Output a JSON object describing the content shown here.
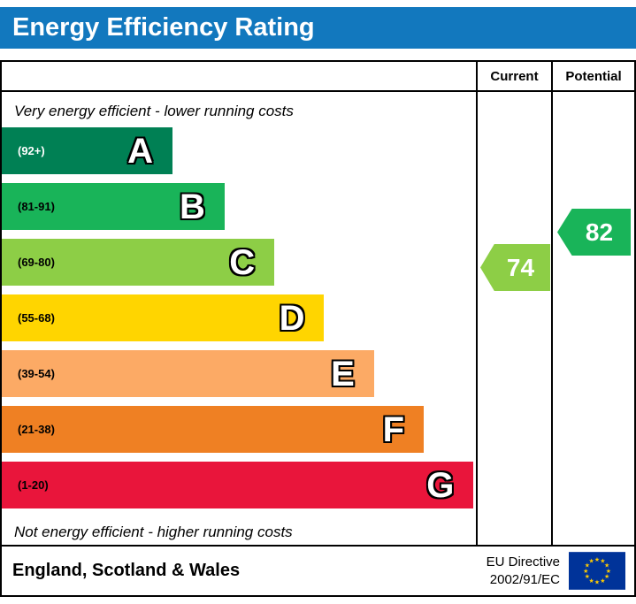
{
  "title": "Energy Efficiency Rating",
  "columns": {
    "current": "Current",
    "potential": "Potential"
  },
  "top_note": "Very energy efficient - lower running costs",
  "bottom_note": "Not energy efficient - higher running costs",
  "colors": {
    "header": "#1278be",
    "eu_flag_blue": "#003399",
    "eu_star_yellow": "#ffcc00"
  },
  "bands": [
    {
      "letter": "A",
      "range": "(92+)",
      "color": "#008054",
      "width": 36,
      "range_color": "#ffffff"
    },
    {
      "letter": "B",
      "range": "(81-91)",
      "color": "#19b459",
      "width": 47,
      "range_color": "#000000"
    },
    {
      "letter": "C",
      "range": "(69-80)",
      "color": "#8dce46",
      "width": 57.5,
      "range_color": "#000000"
    },
    {
      "letter": "D",
      "range": "(55-68)",
      "color": "#ffd500",
      "width": 68,
      "range_color": "#000000"
    },
    {
      "letter": "E",
      "range": "(39-54)",
      "color": "#fcaa65",
      "width": 78.5,
      "range_color": "#000000"
    },
    {
      "letter": "F",
      "range": "(21-38)",
      "color": "#ef8023",
      "width": 89,
      "range_color": "#000000"
    },
    {
      "letter": "G",
      "range": "(1-20)",
      "color": "#e9153b",
      "width": 99.5,
      "range_color": "#000000"
    }
  ],
  "ratings": {
    "current": {
      "value": "74",
      "color": "#8dce46"
    },
    "potential": {
      "value": "82",
      "color": "#19b459"
    }
  },
  "footer": {
    "region": "England, Scotland & Wales",
    "directive_line1": "EU Directive",
    "directive_line2": "2002/91/EC"
  },
  "chart_data": {
    "type": "bar",
    "title": "Energy Efficiency Rating",
    "categories": [
      "A",
      "B",
      "C",
      "D",
      "E",
      "F",
      "G"
    ],
    "ranges": [
      "92+",
      "81-91",
      "69-80",
      "55-68",
      "39-54",
      "21-38",
      "1-20"
    ],
    "band_colors": [
      "#008054",
      "#19b459",
      "#8dce46",
      "#ffd500",
      "#fcaa65",
      "#ef8023",
      "#e9153b"
    ],
    "bar_relative_widths": [
      36,
      47,
      57.5,
      68,
      78.5,
      89,
      99.5
    ],
    "current": 74,
    "current_band": "C",
    "potential": 82,
    "potential_band": "B",
    "footnote": "England, Scotland & Wales — EU Directive 2002/91/EC"
  }
}
